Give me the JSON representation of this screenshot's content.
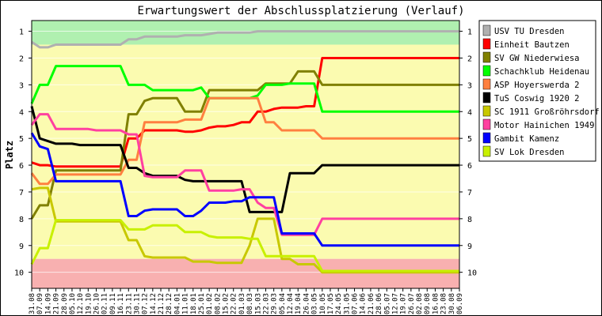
{
  "chart_data": {
    "type": "line",
    "title": "Erwartungswert der Abschlussplatzierung (Verlauf)",
    "ylabel": "Platz",
    "xlabel": "",
    "ylim": [
      0.6,
      10.6
    ],
    "y_inverted": true,
    "yticks": [
      1,
      2,
      3,
      4,
      5,
      6,
      7,
      8,
      9,
      10
    ],
    "grid": true,
    "legend": "right",
    "bands": [
      {
        "from": 0.6,
        "to": 1.5,
        "color": "#b0f0b0"
      },
      {
        "from": 1.5,
        "to": 9.5,
        "color": "#fbfbb0"
      },
      {
        "from": 9.5,
        "to": 10.6,
        "color": "#f8b0b0"
      }
    ],
    "x": [
      "31.08",
      "07.09",
      "14.09",
      "21.09",
      "28.09",
      "05.10",
      "12.10",
      "19.10",
      "26.10",
      "02.11",
      "09.11",
      "16.11",
      "23.11",
      "30.11",
      "07.12",
      "14.12",
      "21.12",
      "28.12",
      "04.01",
      "11.01",
      "18.01",
      "25.01",
      "01.02",
      "08.02",
      "15.02",
      "22.02",
      "01.03",
      "08.03",
      "15.03",
      "22.03",
      "29.03",
      "05.04",
      "12.04",
      "19.04",
      "26.04",
      "03.05",
      "10.05",
      "17.05",
      "24.05",
      "31.05",
      "07.06",
      "14.06",
      "21.06",
      "28.06",
      "05.07",
      "12.07",
      "19.07",
      "26.07",
      "02.08",
      "09.08",
      "16.08",
      "23.08",
      "30.08",
      "06.09"
    ],
    "series": [
      {
        "name": "USV TU Dresden",
        "color": "#b0b0b0",
        "values": [
          1.4,
          1.6,
          1.6,
          1.5,
          1.5,
          1.5,
          1.5,
          1.5,
          1.5,
          1.5,
          1.5,
          1.5,
          1.3,
          1.3,
          1.2,
          1.2,
          1.2,
          1.2,
          1.2,
          1.15,
          1.15,
          1.15,
          1.1,
          1.05,
          1.05,
          1.05,
          1.05,
          1.05,
          1.0,
          1.0,
          1.0,
          1.0,
          1.0,
          1.0,
          1.0,
          1.0,
          1.0,
          1.0,
          1.0,
          1.0,
          1.0,
          1.0,
          1.0,
          1.0,
          1.0,
          1.0,
          1.0,
          1.0,
          1.0,
          1.0,
          1.0,
          1.0,
          1.0,
          1.0
        ]
      },
      {
        "name": "Einheit Bautzen",
        "color": "#ff0000",
        "values": [
          5.9,
          6.0,
          6.0,
          6.05,
          6.05,
          6.05,
          6.05,
          6.05,
          6.05,
          6.05,
          6.05,
          6.05,
          5.0,
          5.0,
          4.7,
          4.7,
          4.7,
          4.7,
          4.7,
          4.75,
          4.75,
          4.7,
          4.6,
          4.55,
          4.55,
          4.5,
          4.4,
          4.4,
          4.0,
          4.0,
          3.9,
          3.85,
          3.85,
          3.85,
          3.8,
          3.8,
          2.0,
          2.0,
          2.0,
          2.0,
          2.0,
          2.0,
          2.0,
          2.0,
          2.0,
          2.0,
          2.0,
          2.0,
          2.0,
          2.0,
          2.0,
          2.0,
          2.0,
          2.0
        ]
      },
      {
        "name": "SV GW Niederwiesa",
        "color": "#808000",
        "values": [
          8.0,
          7.5,
          7.5,
          6.2,
          6.2,
          6.2,
          6.2,
          6.2,
          6.2,
          6.2,
          6.2,
          6.2,
          4.1,
          4.1,
          3.6,
          3.5,
          3.5,
          3.5,
          3.5,
          4.0,
          4.0,
          4.0,
          3.2,
          3.2,
          3.2,
          3.2,
          3.2,
          3.2,
          3.2,
          2.95,
          2.95,
          2.95,
          2.95,
          2.5,
          2.5,
          2.5,
          3.0,
          3.0,
          3.0,
          3.0,
          3.0,
          3.0,
          3.0,
          3.0,
          3.0,
          3.0,
          3.0,
          3.0,
          3.0,
          3.0,
          3.0,
          3.0,
          3.0,
          3.0
        ]
      },
      {
        "name": "Schachklub Heidenau",
        "color": "#00ff00",
        "values": [
          3.7,
          3.0,
          3.0,
          2.3,
          2.3,
          2.3,
          2.3,
          2.3,
          2.3,
          2.3,
          2.3,
          2.3,
          3.0,
          3.0,
          3.0,
          3.2,
          3.2,
          3.2,
          3.2,
          3.2,
          3.2,
          3.1,
          3.5,
          3.5,
          3.5,
          3.5,
          3.5,
          3.5,
          3.4,
          3.0,
          3.0,
          3.0,
          2.95,
          2.95,
          2.95,
          2.95,
          4.0,
          4.0,
          4.0,
          4.0,
          4.0,
          4.0,
          4.0,
          4.0,
          4.0,
          4.0,
          4.0,
          4.0,
          4.0,
          4.0,
          4.0,
          4.0,
          4.0,
          4.0
        ]
      },
      {
        "name": "ASP Hoyerswerda 2",
        "color": "#ff8040",
        "values": [
          6.3,
          6.7,
          6.7,
          6.35,
          6.35,
          6.35,
          6.35,
          6.35,
          6.35,
          6.35,
          6.35,
          6.35,
          5.8,
          5.8,
          4.4,
          4.4,
          4.4,
          4.4,
          4.4,
          4.3,
          4.3,
          4.3,
          3.5,
          3.5,
          3.5,
          3.5,
          3.5,
          3.5,
          3.5,
          4.4,
          4.4,
          4.7,
          4.7,
          4.7,
          4.7,
          4.7,
          5.0,
          5.0,
          5.0,
          5.0,
          5.0,
          5.0,
          5.0,
          5.0,
          5.0,
          5.0,
          5.0,
          5.0,
          5.0,
          5.0,
          5.0,
          5.0,
          5.0,
          5.0
        ]
      },
      {
        "name": "TuS Coswig 1920 2",
        "color": "#000000",
        "values": [
          3.8,
          5.0,
          5.1,
          5.2,
          5.2,
          5.2,
          5.25,
          5.25,
          5.25,
          5.25,
          5.25,
          5.25,
          6.1,
          6.1,
          6.3,
          6.4,
          6.4,
          6.4,
          6.4,
          6.55,
          6.6,
          6.6,
          6.6,
          6.6,
          6.6,
          6.6,
          6.6,
          7.75,
          7.75,
          7.75,
          7.75,
          7.75,
          6.3,
          6.3,
          6.3,
          6.3,
          6.0,
          6.0,
          6.0,
          6.0,
          6.0,
          6.0,
          6.0,
          6.0,
          6.0,
          6.0,
          6.0,
          6.0,
          6.0,
          6.0,
          6.0,
          6.0,
          6.0,
          6.0
        ]
      },
      {
        "name": "SC 1911 Großröhrsdorf",
        "color": "#c8c800",
        "values": [
          6.9,
          6.85,
          6.85,
          8.1,
          8.1,
          8.1,
          8.1,
          8.1,
          8.1,
          8.1,
          8.1,
          8.1,
          8.8,
          8.8,
          9.4,
          9.45,
          9.45,
          9.45,
          9.45,
          9.45,
          9.6,
          9.6,
          9.6,
          9.65,
          9.65,
          9.65,
          9.65,
          9.0,
          8.0,
          8.0,
          8.0,
          9.5,
          9.5,
          9.7,
          9.7,
          9.7,
          10.0,
          10.0,
          10.0,
          10.0,
          10.0,
          10.0,
          10.0,
          10.0,
          10.0,
          10.0,
          10.0,
          10.0,
          10.0,
          10.0,
          10.0,
          10.0,
          10.0,
          10.0
        ]
      },
      {
        "name": "Motor Hainichen 1949",
        "color": "#ff40a0",
        "values": [
          4.5,
          4.1,
          4.1,
          4.65,
          4.65,
          4.65,
          4.65,
          4.65,
          4.7,
          4.7,
          4.7,
          4.7,
          4.85,
          4.85,
          6.4,
          6.45,
          6.45,
          6.45,
          6.45,
          6.2,
          6.2,
          6.2,
          6.95,
          6.95,
          6.95,
          6.95,
          6.9,
          6.9,
          7.4,
          7.6,
          7.6,
          8.6,
          8.6,
          8.6,
          8.6,
          8.6,
          8.0,
          8.0,
          8.0,
          8.0,
          8.0,
          8.0,
          8.0,
          8.0,
          8.0,
          8.0,
          8.0,
          8.0,
          8.0,
          8.0,
          8.0,
          8.0,
          8.0,
          8.0
        ]
      },
      {
        "name": "Gambit Kamenz",
        "color": "#0000ff",
        "values": [
          4.8,
          5.3,
          5.4,
          6.6,
          6.6,
          6.6,
          6.6,
          6.6,
          6.6,
          6.6,
          6.6,
          6.6,
          7.9,
          7.9,
          7.7,
          7.65,
          7.65,
          7.65,
          7.65,
          7.9,
          7.9,
          7.7,
          7.4,
          7.4,
          7.4,
          7.35,
          7.35,
          7.2,
          7.2,
          7.2,
          7.2,
          8.55,
          8.55,
          8.55,
          8.55,
          8.55,
          9.0,
          9.0,
          9.0,
          9.0,
          9.0,
          9.0,
          9.0,
          9.0,
          9.0,
          9.0,
          9.0,
          9.0,
          9.0,
          9.0,
          9.0,
          9.0,
          9.0,
          9.0
        ]
      },
      {
        "name": "SV Lok Dresden",
        "color": "#c8f000",
        "values": [
          9.7,
          9.1,
          9.1,
          8.05,
          8.05,
          8.05,
          8.05,
          8.05,
          8.05,
          8.05,
          8.05,
          8.05,
          8.4,
          8.4,
          8.4,
          8.25,
          8.25,
          8.25,
          8.25,
          8.5,
          8.5,
          8.5,
          8.65,
          8.7,
          8.7,
          8.7,
          8.7,
          8.75,
          8.75,
          9.4,
          9.4,
          9.4,
          9.4,
          9.4,
          9.4,
          9.4,
          9.95,
          9.95,
          9.95,
          9.95,
          9.95,
          9.95,
          9.95,
          9.95,
          9.95,
          9.95,
          9.95,
          9.95,
          9.95,
          9.95,
          9.95,
          9.95,
          9.95,
          9.95
        ]
      }
    ]
  }
}
